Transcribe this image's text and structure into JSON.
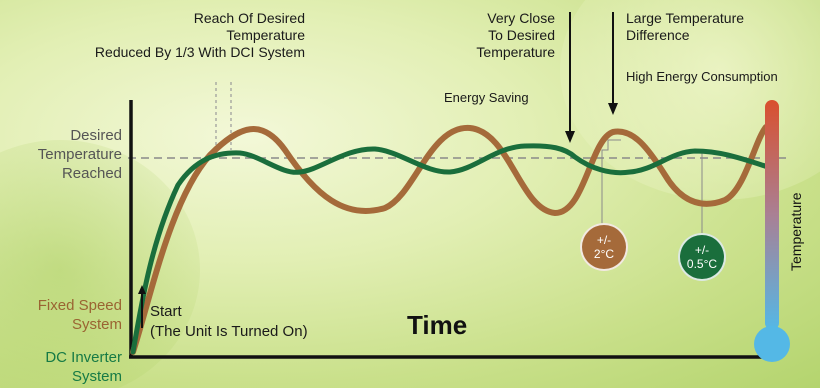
{
  "labels": {
    "reach_desired": [
      "Reach Of Desired",
      "Temperature",
      "Reduced By 1/3 With DCI System"
    ],
    "very_close": [
      "Very Close",
      "To Desired",
      "Temperature"
    ],
    "energy_saving": "Energy Saving",
    "large_diff": [
      "Large Temperature",
      "Difference"
    ],
    "high_energy": "High Energy Consumption",
    "desired_reached": [
      "Desired",
      "Temperature",
      "Reached"
    ],
    "fixed_speed": [
      "Fixed Speed",
      "System"
    ],
    "dc_inverter": [
      "DC Inverter",
      "System"
    ],
    "start": [
      "Start",
      "(The Unit Is Turned On)"
    ],
    "time_axis": "Time",
    "thermometer_label": "Temperature"
  },
  "badges": {
    "fixed": [
      "+/-",
      "2°C"
    ],
    "inverter": [
      "+/-",
      "0.5°C"
    ]
  },
  "colors": {
    "fixed_speed": "#a56a3a",
    "dc_inverter": "#1a6e3c",
    "axis": "#111111",
    "desired_line": "#8a8a8a",
    "thermo_hot": "#d9502e",
    "thermo_cold": "#54b8e6"
  },
  "icons": {
    "arrow": "down-arrow-icon",
    "thermometer": "thermometer-icon"
  }
}
